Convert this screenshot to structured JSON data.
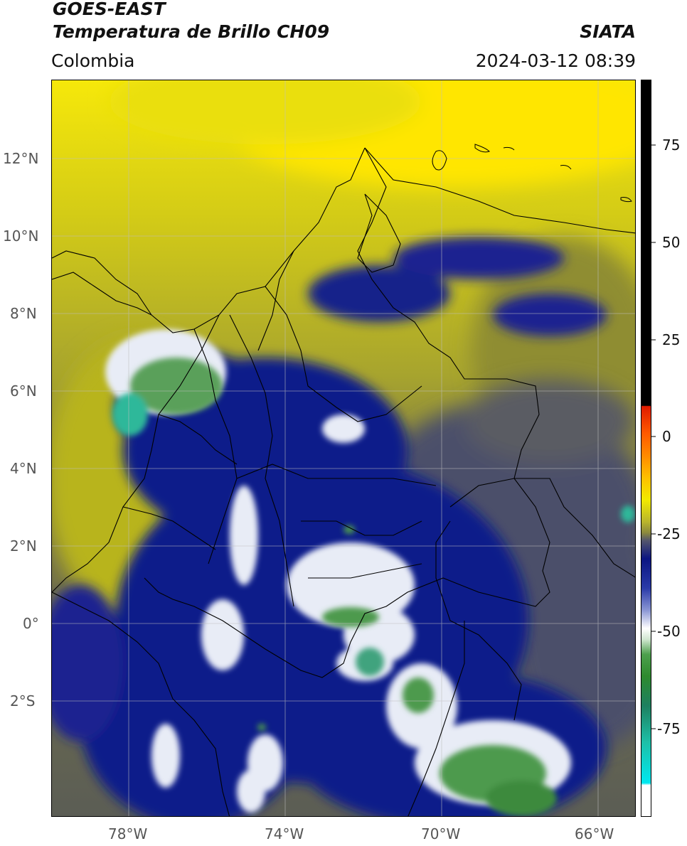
{
  "header": {
    "satellite": "GOES-EAST",
    "product": "Temperatura de Brillo CH09",
    "agency": "SIATA",
    "region": "Colombia",
    "datetime": "2024-03-12 08:39"
  },
  "map": {
    "lat_ticks": [
      "12°N",
      "10°N",
      "8°N",
      "6°N",
      "4°N",
      "2°N",
      "0°",
      "2°S"
    ],
    "lon_ticks": [
      "78°W",
      "74°W",
      "70°W",
      "66°W"
    ],
    "gridlines": true,
    "colors": {
      "warm_yellow": "#ffe600",
      "olive": "#b8b41e",
      "dark_olive": "#6f6b3c",
      "slate": "#4b4f6a",
      "navy": "#0a1a8a",
      "white": "#f4f4f4",
      "green": "#4e9a4e",
      "teal": "#2fb89a",
      "border": "#000000"
    }
  },
  "colorbar": {
    "ticks": [
      "75",
      "50",
      "25",
      "0",
      "-25",
      "-50",
      "-75"
    ],
    "colors": {
      "top_black": "#000000",
      "red": "#e01b00",
      "orange": "#ff8a00",
      "yellow": "#f2ea00",
      "olive": "#a9a533",
      "gray": "#55576b",
      "navy": "#0b1582",
      "white": "#ffffff",
      "green": "#2e8a2e",
      "teal": "#1dc0a8",
      "cyan": "#00e8f0"
    }
  }
}
